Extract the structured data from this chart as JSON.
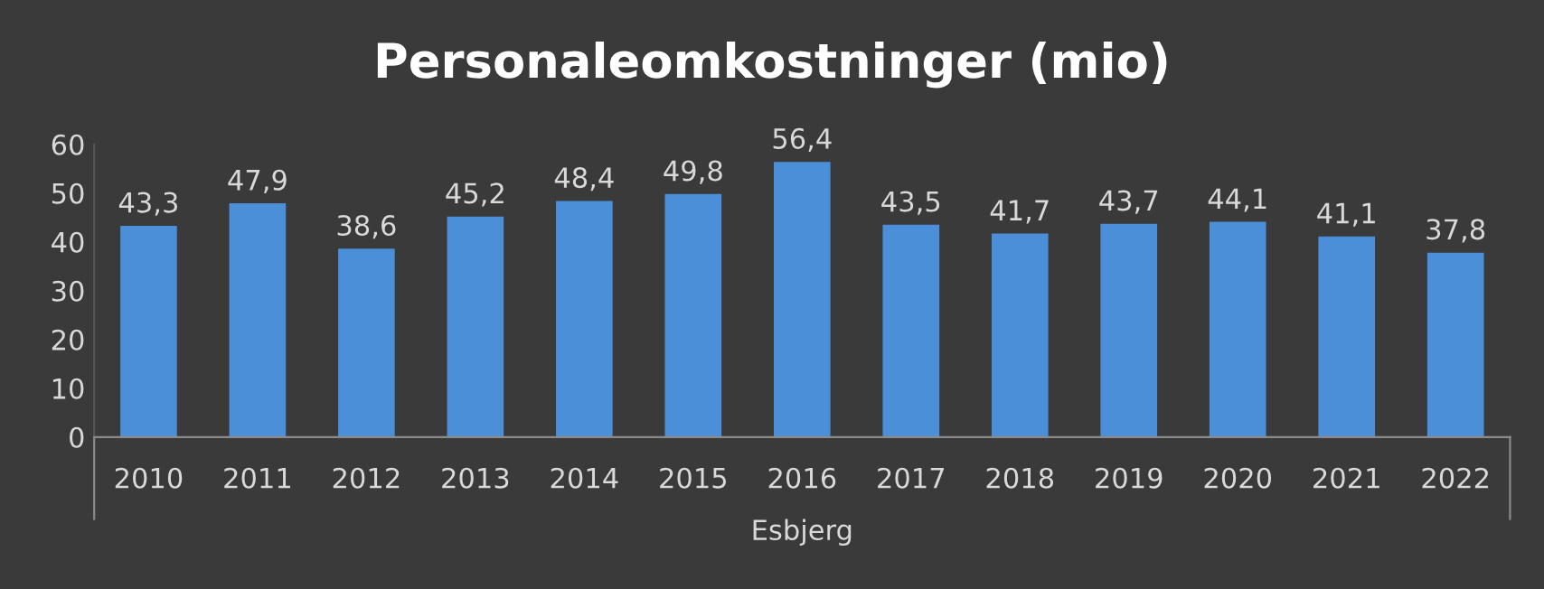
{
  "chart_data": {
    "type": "bar",
    "title": "Personaleomkostninger (mio)",
    "xlabel": "Esbjerg",
    "categories": [
      "2010",
      "2011",
      "2012",
      "2013",
      "2014",
      "2015",
      "2016",
      "2017",
      "2018",
      "2019",
      "2020",
      "2021",
      "2022"
    ],
    "values": [
      43.3,
      47.9,
      38.6,
      45.2,
      48.4,
      49.8,
      56.4,
      43.5,
      41.7,
      43.7,
      44.1,
      41.1,
      37.8
    ],
    "value_labels": [
      "43,3",
      "47,9",
      "38,6",
      "45,2",
      "48,4",
      "49,8",
      "56,4",
      "43,5",
      "41,7",
      "43,7",
      "44,1",
      "41,1",
      "37,8"
    ],
    "color": "#4a8fd8",
    "ylim": [
      0,
      60
    ],
    "yticks": [
      0,
      10,
      20,
      30,
      40,
      50,
      60
    ],
    "grid": false,
    "legend": false
  }
}
